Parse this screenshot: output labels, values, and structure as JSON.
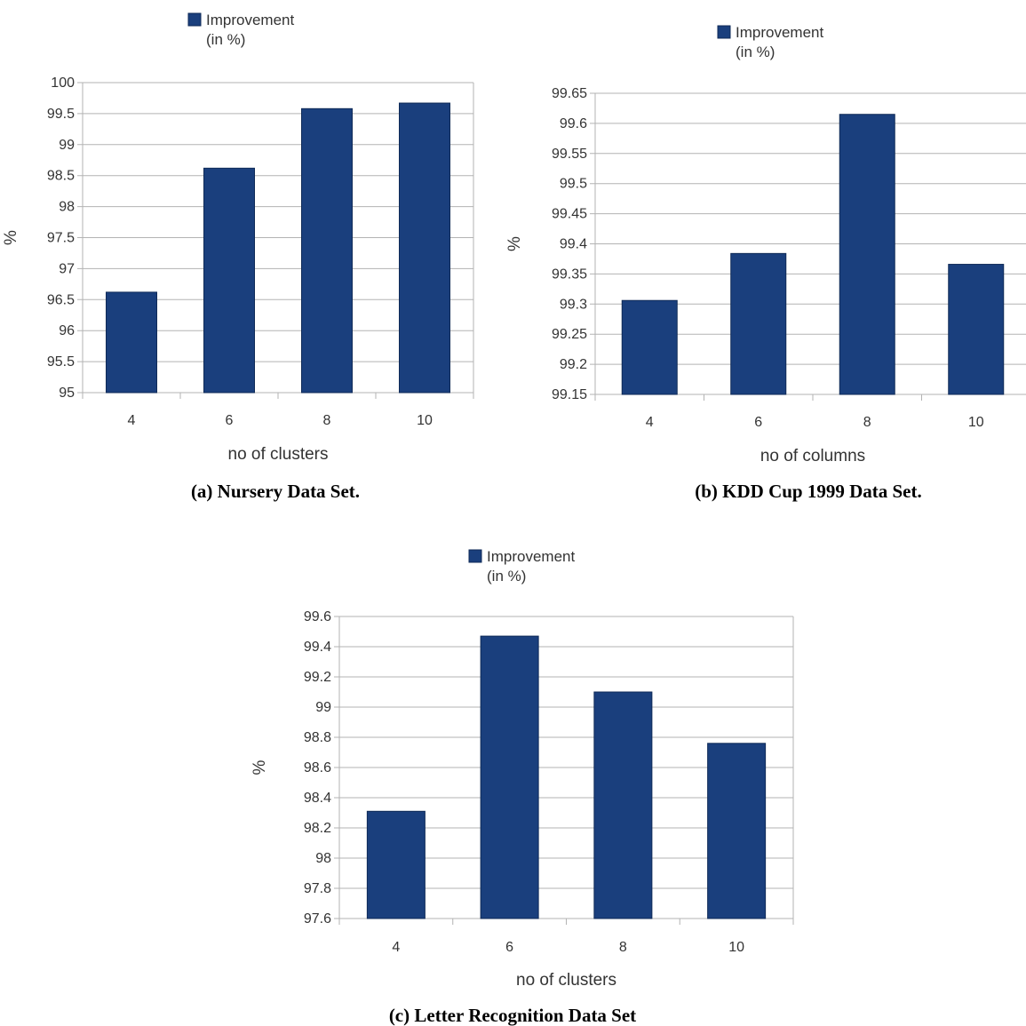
{
  "colors": {
    "bar": "#1a3f7d",
    "bar_edge": "#0f2a57",
    "grid": "#b3b3b3"
  },
  "chart_data": [
    {
      "type": "bar",
      "legend": [
        "Improvement",
        "(in %)"
      ],
      "categories": [
        "4",
        "6",
        "8",
        "10"
      ],
      "values": [
        96.62,
        98.62,
        99.58,
        99.67
      ],
      "yticks": [
        "95",
        "95.5",
        "96",
        "96.5",
        "97",
        "97.5",
        "98",
        "98.5",
        "99",
        "99.5",
        "100"
      ],
      "ylim": [
        95,
        100
      ],
      "xlabel": "no of clusters",
      "ylabel": "%",
      "caption": "(a) Nursery Data Set.",
      "grid": true,
      "legend_position": "top"
    },
    {
      "type": "bar",
      "legend": [
        "Improvement",
        "(in %)"
      ],
      "categories": [
        "4",
        "6",
        "8",
        "10"
      ],
      "values": [
        99.306,
        99.384,
        99.615,
        99.366
      ],
      "yticks": [
        "99.15",
        "99.2",
        "99.25",
        "99.3",
        "99.35",
        "99.4",
        "99.45",
        "99.5",
        "99.55",
        "99.6",
        "99.65"
      ],
      "ylim": [
        99.15,
        99.65
      ],
      "xlabel": "no of columns",
      "ylabel": "%",
      "caption": "(b) KDD Cup 1999 Data Set.",
      "grid": true,
      "legend_position": "top"
    },
    {
      "type": "bar",
      "legend": [
        "Improvement",
        "(in %)"
      ],
      "categories": [
        "4",
        "6",
        "8",
        "10"
      ],
      "values": [
        98.31,
        99.47,
        99.1,
        98.76
      ],
      "yticks": [
        "97.6",
        "97.8",
        "98",
        "98.2",
        "98.4",
        "98.6",
        "98.8",
        "99",
        "99.2",
        "99.4",
        "99.6"
      ],
      "ylim": [
        97.6,
        99.6
      ],
      "xlabel": "no of clusters",
      "ylabel": "%",
      "caption": "(c) Letter Recognition Data Set",
      "grid": true,
      "legend_position": "top"
    }
  ]
}
